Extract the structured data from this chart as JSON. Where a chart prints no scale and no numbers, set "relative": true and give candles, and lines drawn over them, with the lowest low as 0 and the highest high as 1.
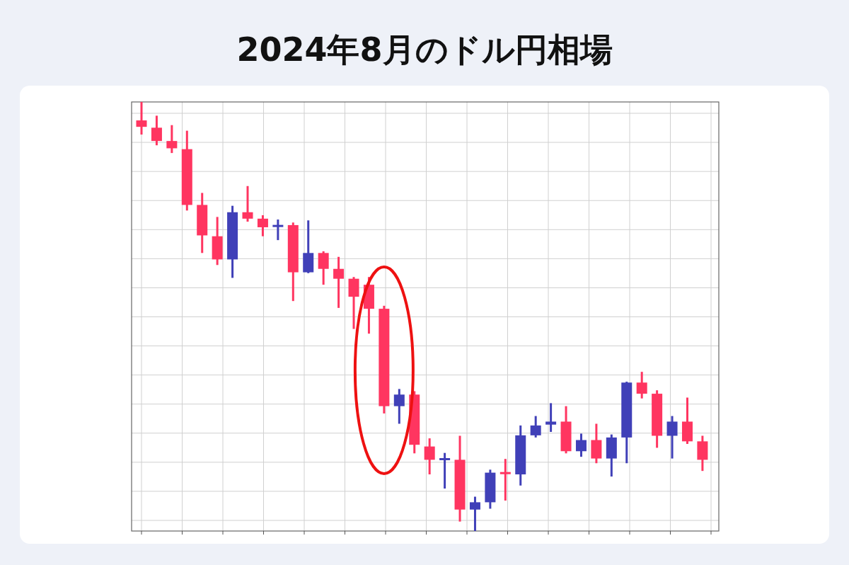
{
  "chart_data": {
    "type": "candlestick",
    "title": "2024年8月のドル円相場",
    "relative": true,
    "grid": true,
    "categories": [
      null,
      null,
      null,
      null,
      null,
      null,
      null,
      null,
      null,
      null,
      null,
      null,
      null,
      null,
      null,
      null,
      null,
      null,
      null,
      null,
      null,
      null,
      null,
      null,
      null,
      null,
      null,
      null,
      null,
      null,
      null,
      null,
      null,
      null,
      null,
      null,
      null,
      null
    ],
    "ohlc": [
      [
        0.957,
        1,
        0.924,
        0.942
      ],
      [
        0.94,
        0.968,
        0.899,
        0.909
      ],
      [
        0.909,
        0.946,
        0.881,
        0.892
      ],
      [
        0.89,
        0.933,
        0.747,
        0.76
      ],
      [
        0.76,
        0.788,
        0.648,
        0.689
      ],
      [
        0.687,
        0.732,
        0.62,
        0.633
      ],
      [
        0.633,
        0.758,
        0.59,
        0.743
      ],
      [
        0.743,
        0.804,
        0.721,
        0.728
      ],
      [
        0.728,
        0.736,
        0.687,
        0.708
      ],
      [
        0.709,
        0.726,
        0.678,
        0.713
      ],
      [
        0.713,
        0.719,
        0.536,
        0.603
      ],
      [
        0.603,
        0.724,
        0.601,
        0.648
      ],
      [
        0.648,
        0.652,
        0.574,
        0.611
      ],
      [
        0.611,
        0.639,
        0.52,
        0.588
      ],
      [
        0.588,
        0.592,
        0.471,
        0.546
      ],
      [
        0.574,
        0.592,
        0.46,
        0.518
      ],
      [
        0.518,
        0.525,
        0.274,
        0.291
      ],
      [
        0.291,
        0.331,
        0.25,
        0.318
      ],
      [
        0.318,
        0.326,
        0.181,
        0.201
      ],
      [
        0.197,
        0.216,
        0.132,
        0.166
      ],
      [
        0.166,
        0.182,
        0.099,
        0.169
      ],
      [
        0.166,
        0.222,
        0.022,
        0.05
      ],
      [
        0.05,
        0.08,
        0,
        0.067
      ],
      [
        0.067,
        0.143,
        0.052,
        0.136
      ],
      [
        0.136,
        0.168,
        0.071,
        0.134
      ],
      [
        0.132,
        0.246,
        0.106,
        0.223
      ],
      [
        0.223,
        0.268,
        0.218,
        0.246
      ],
      [
        0.248,
        0.298,
        0.231,
        0.255
      ],
      [
        0.255,
        0.291,
        0.181,
        0.186
      ],
      [
        0.186,
        0.227,
        0.173,
        0.212
      ],
      [
        0.212,
        0.25,
        0.158,
        0.169
      ],
      [
        0.169,
        0.225,
        0.127,
        0.218
      ],
      [
        0.218,
        0.348,
        0.158,
        0.346
      ],
      [
        0.346,
        0.371,
        0.309,
        0.32
      ],
      [
        0.32,
        0.328,
        0.194,
        0.222
      ],
      [
        0.222,
        0.268,
        0.169,
        0.255
      ],
      [
        0.255,
        0.311,
        0.203,
        0.209
      ],
      [
        0.209,
        0.222,
        0.14,
        0.166
      ]
    ],
    "colors": [
      "#ff3560",
      "#ff3560",
      "#ff3560",
      "#ff3560",
      "#ff3560",
      "#ff3560",
      "#4040b8",
      "#ff3560",
      "#ff3560",
      "#4040b8",
      "#ff3560",
      "#4040b8",
      "#ff3560",
      "#ff3560",
      "#ff3560",
      "#ff3560",
      "#ff3560",
      "#4040b8",
      "#ff3560",
      "#ff3560",
      "#4040b8",
      "#ff3560",
      "#4040b8",
      "#4040b8",
      "#ff3560",
      "#4040b8",
      "#4040b8",
      "#4040b8",
      "#ff3560",
      "#4040b8",
      "#ff3560",
      "#4040b8",
      "#4040b8",
      "#ff3560",
      "#ff3560",
      "#4040b8",
      "#ff3560",
      "#ff3560"
    ]
  }
}
